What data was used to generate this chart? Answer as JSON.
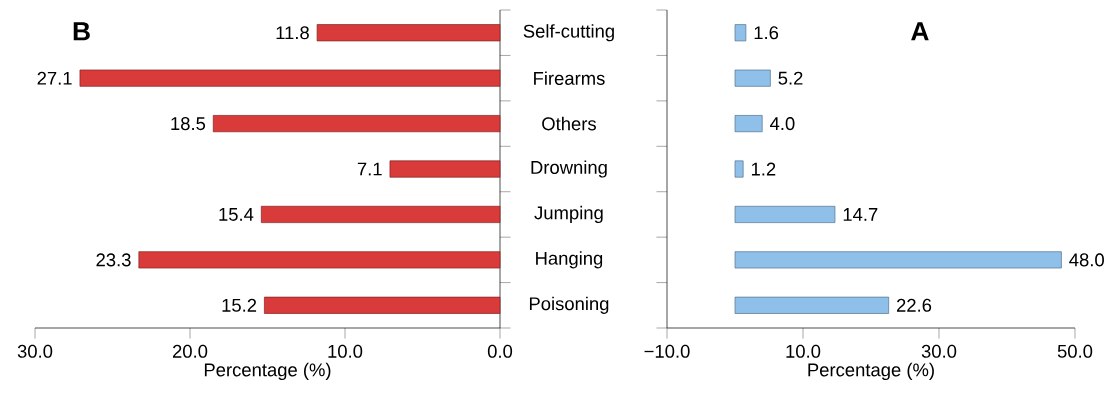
{
  "chart_data": [
    {
      "type": "bar",
      "orientation": "horizontal",
      "title": "B",
      "xlabel": "Percentage (%)",
      "categories": [
        null,
        null,
        null,
        null,
        null,
        null,
        null
      ],
      "values": [
        11.8,
        27.1,
        18.5,
        7.1,
        15.4,
        23.3,
        15.2
      ],
      "value_labels": [
        "11.8",
        "27.1",
        "18.5",
        "7.1",
        "15.4",
        "23.3",
        "15.2"
      ],
      "color": "#d93a3a",
      "xlim": [
        30,
        0
      ],
      "xticks": [
        {
          "value": 30,
          "label": "30.0"
        },
        {
          "value": 20,
          "label": "20.0"
        },
        {
          "value": 10,
          "label": "10.0"
        },
        {
          "value": 0,
          "label": "0.0"
        }
      ],
      "tick_labels": "x"
    },
    {
      "type": "bar",
      "orientation": "horizontal",
      "title": "A",
      "xlabel": "Percentage (%)",
      "categories": [
        "Self-cutting",
        "Firearms",
        "Others",
        "Drowning",
        "Jumping",
        "Hanging",
        "Poisoning"
      ],
      "values": [
        1.6,
        5.2,
        4.0,
        1.2,
        14.7,
        48.0,
        22.6
      ],
      "value_labels": [
        "1.6",
        "5.2",
        "4.0",
        "1.2",
        "14.7",
        "48.0",
        "22.6"
      ],
      "color": "#8ec0ea",
      "xlim": [
        -10,
        50
      ],
      "xticks": [
        {
          "value": -10,
          "label": "−10.0"
        },
        {
          "value": 10,
          "label": "10.0"
        },
        {
          "value": 30,
          "label": "30.0"
        },
        {
          "value": 50,
          "label": "50.0"
        }
      ]
    }
  ]
}
